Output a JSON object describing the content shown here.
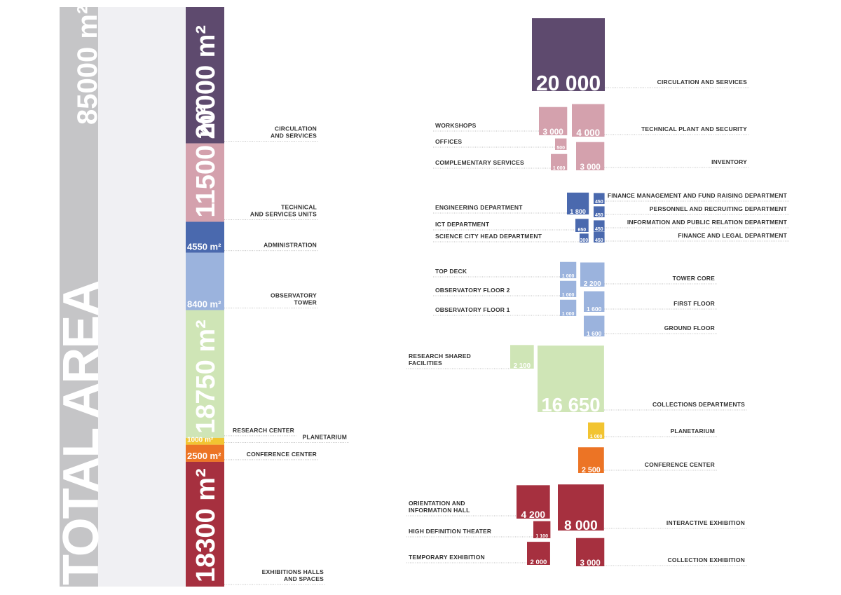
{
  "total": {
    "title": "TOTAL AREA",
    "area": 85000,
    "area_label": "85000 m²"
  },
  "segments": [
    {
      "area": 20000,
      "area_label": "20000 m²",
      "name": [
        "CIRCULATION",
        "AND SERVICES"
      ],
      "color": "#5e4a6e",
      "items": [
        {
          "name": [
            "CIRCULATION AND SERVICES"
          ],
          "value": 20000,
          "label": "20 000"
        }
      ]
    },
    {
      "area": 11500,
      "area_label": "11500 m²",
      "name": [
        "TECHNICAL",
        "AND SERVICES UNITS"
      ],
      "color": "#d4a1ad",
      "items": [
        {
          "name": [
            "WORKSHOPS"
          ],
          "value": 3000,
          "label": "3 000"
        },
        {
          "name": [
            "TECHNICAL PLANT AND SECURITY"
          ],
          "value": 4000,
          "label": "4 000"
        },
        {
          "name": [
            "OFFICES"
          ],
          "value": 500,
          "label": "500"
        },
        {
          "name": [
            "COMPLEMENTARY SERVICES"
          ],
          "value": 1000,
          "label": "1 000"
        },
        {
          "name": [
            "INVENTORY"
          ],
          "value": 3000,
          "label": "3 000"
        }
      ]
    },
    {
      "area": 4550,
      "area_label": "4550 m²",
      "name": [
        "ADMINISTRATION"
      ],
      "color": "#4a69ae",
      "items": [
        {
          "name": [
            "ENGINEERING DEPARTMENT"
          ],
          "value": 1800,
          "label": "1 800"
        },
        {
          "name": [
            "ICT DEPARTMENT"
          ],
          "value": 650,
          "label": "650"
        },
        {
          "name": [
            "SCIENCE CITY HEAD DEPARTMENT"
          ],
          "value": 300,
          "label": "300"
        },
        {
          "name": [
            "FINANCE MANAGEMENT AND FUND RAISING DEPARTMENT"
          ],
          "value": 450,
          "label": "450"
        },
        {
          "name": [
            "PERSONNEL AND RECRUITING DEPARTMENT"
          ],
          "value": 450,
          "label": "450"
        },
        {
          "name": [
            "INFORMATION AND PUBLIC RELATION DEPARTMENT"
          ],
          "value": 450,
          "label": "450"
        },
        {
          "name": [
            "FINANCE AND LEGAL DEPARTMENT"
          ],
          "value": 450,
          "label": "450"
        }
      ]
    },
    {
      "area": 8400,
      "area_label": "8400 m²",
      "name": [
        "OBSERVATORY",
        "TOWER"
      ],
      "color": "#9bb3dd",
      "items": [
        {
          "name": [
            "TOP DECK"
          ],
          "value": 1000,
          "label": "1 000"
        },
        {
          "name": [
            "OBSERVATORY FLOOR 2"
          ],
          "value": 1000,
          "label": "1 000"
        },
        {
          "name": [
            "OBSERVATORY FLOOR 1"
          ],
          "value": 1000,
          "label": "1 000"
        },
        {
          "name": [
            "TOWER CORE"
          ],
          "value": 2200,
          "label": "2 200"
        },
        {
          "name": [
            "FIRST FLOOR"
          ],
          "value": 1600,
          "label": "1 600"
        },
        {
          "name": [
            "GROUND FLOOR"
          ],
          "value": 1600,
          "label": "1 600"
        }
      ]
    },
    {
      "area": 18750,
      "area_label": "18750 m²",
      "name": [
        "RESEARCH CENTER"
      ],
      "color": "#cfe5b6",
      "items": [
        {
          "name": [
            "RESEARCH SHARED",
            "FACILITIES"
          ],
          "value": 2100,
          "label": "2 100"
        },
        {
          "name": [
            "COLLECTIONS DEPARTMENTS"
          ],
          "value": 16650,
          "label": "16 650"
        }
      ]
    },
    {
      "area": 1000,
      "area_label": "1000 m²",
      "name": [
        "PLANETARIUM"
      ],
      "color": "#f2c431",
      "items": [
        {
          "name": [
            "PLANETARIUM"
          ],
          "value": 1000,
          "label": "1 000"
        }
      ]
    },
    {
      "area": 2500,
      "area_label": "2500 m²",
      "name": [
        "CONFERENCE CENTER"
      ],
      "color": "#ec7425",
      "items": [
        {
          "name": [
            "CONFERENCE CENTER"
          ],
          "value": 2500,
          "label": "2 500"
        }
      ]
    },
    {
      "area": 18300,
      "area_label": "18300 m²",
      "name": [
        "EXHIBITIONS HALLS",
        "AND SPACES"
      ],
      "color": "#a6303f",
      "items": [
        {
          "name": [
            "ORIENTATION AND",
            "INFORMATION HALL"
          ],
          "value": 4200,
          "label": "4 200"
        },
        {
          "name": [
            "INTERACTIVE EXHIBITION"
          ],
          "value": 8000,
          "label": "8 000"
        },
        {
          "name": [
            "HIGH DEFINITION THEATER"
          ],
          "value": 1100,
          "label": "1 100"
        },
        {
          "name": [
            "TEMPORARY EXHIBITION"
          ],
          "value": 2000,
          "label": "2 000"
        },
        {
          "name": [
            "COLLECTION EXHIBITION"
          ],
          "value": 3000,
          "label": "3 000"
        }
      ]
    }
  ]
}
